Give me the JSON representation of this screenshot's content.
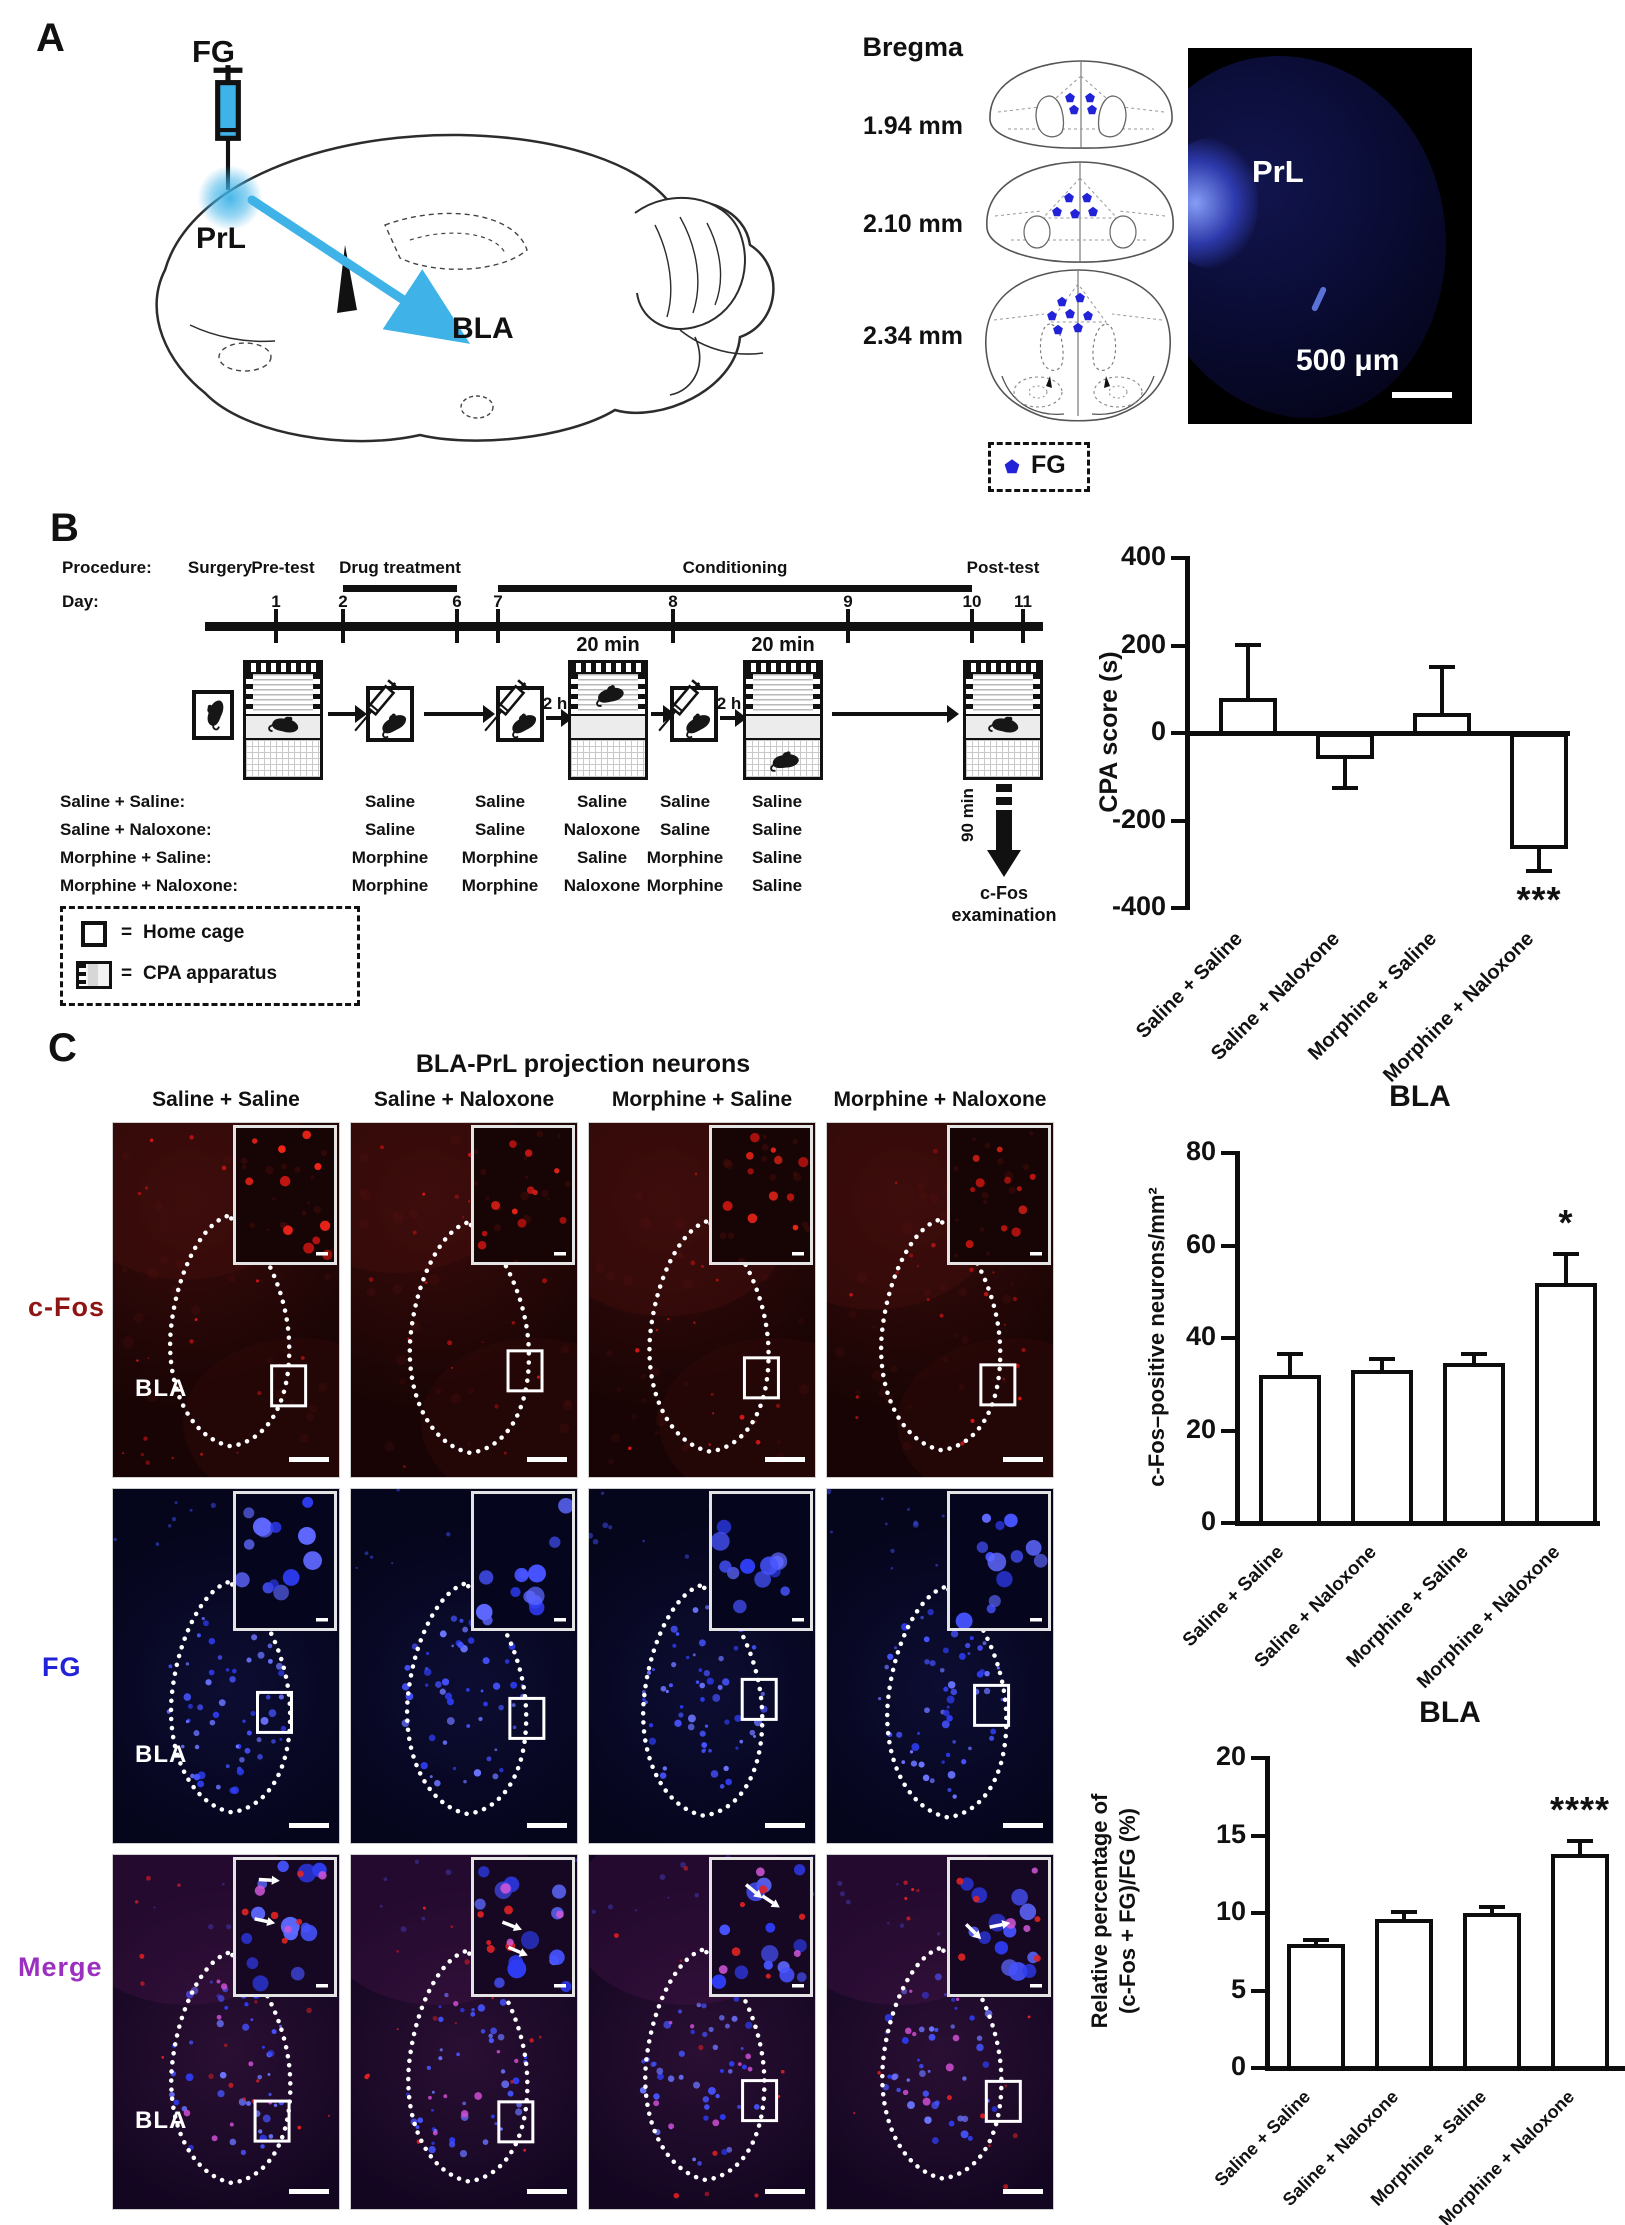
{
  "colors": {
    "accent_cyan": "#3FB3E8",
    "fg_dot_blue": "#2222D8",
    "cfos_label_red": "#8F1414",
    "fg_label_blue": "#2222D8",
    "merge_label_purple": "#9B2FC0"
  },
  "panelA": {
    "label": "A",
    "tracer_label": "FG",
    "injection_site_label": "PrL",
    "projection_target_label": "BLA",
    "bregma_title": "Bregma",
    "sections": [
      {
        "label": "1.94 mm"
      },
      {
        "label": "2.10 mm"
      },
      {
        "label": "2.34 mm"
      }
    ],
    "fg_legend_label": "FG",
    "micrograph": {
      "region_label": "PrL",
      "scale_bar_label": "500 μm"
    }
  },
  "panelB": {
    "label": "B",
    "procedure_caption": "Procedure:",
    "day_caption": "Day:",
    "procedures": [
      "Surgery",
      "Pre-test",
      "Drug treatment",
      "Conditioning",
      "Post-test"
    ],
    "days": [
      "1",
      "2",
      "6",
      "7",
      "8",
      "9",
      "10",
      "11"
    ],
    "session_durations": [
      "20 min",
      "20 min"
    ],
    "post_injection_waits": [
      "2 h",
      "2 h"
    ],
    "groups": [
      {
        "label": "Saline + Saline:",
        "treatments": [
          "Saline",
          "Saline",
          "Saline",
          "Saline",
          "Saline"
        ]
      },
      {
        "label": "Saline + Naloxone:",
        "treatments": [
          "Saline",
          "Saline",
          "Naloxone",
          "Saline",
          "Saline"
        ]
      },
      {
        "label": "Morphine + Saline:",
        "treatments": [
          "Morphine",
          "Morphine",
          "Saline",
          "Morphine",
          "Saline"
        ]
      },
      {
        "label": "Morphine + Naloxone:",
        "treatments": [
          "Morphine",
          "Morphine",
          "Naloxone",
          "Morphine",
          "Saline"
        ]
      }
    ],
    "legend": [
      {
        "icon": "home-cage-icon",
        "label": "Home cage",
        "equals": "="
      },
      {
        "icon": "cpa-apparatus-icon",
        "label": "CPA apparatus",
        "equals": "="
      }
    ],
    "cfos_delay_label": "90 min",
    "cfos_exam_label": "c-Fos examination"
  },
  "panelC": {
    "label": "C",
    "title": "BLA-PrL projection neurons",
    "column_headers": [
      "Saline + Saline",
      "Saline + Naloxone",
      "Morphine + Saline",
      "Morphine + Naloxone"
    ],
    "row_labels": [
      {
        "text": "c-Fos"
      },
      {
        "text": "FG"
      },
      {
        "text": "Merge"
      }
    ],
    "region_label": "BLA"
  },
  "chart_data": [
    {
      "id": "cpa",
      "type": "bar",
      "title": "",
      "ylabel": "CPA score (s)",
      "categories": [
        "Saline + Saline",
        "Saline + Naloxone",
        "Morphine + Saline",
        "Morphine + Naloxone"
      ],
      "values": [
        80,
        -55,
        45,
        -260
      ],
      "errors": [
        125,
        75,
        110,
        60
      ],
      "ylim": [
        -400,
        400
      ],
      "yticks": [
        400,
        200,
        0,
        -200,
        -400
      ],
      "grid": false,
      "legend_shown": false,
      "significance": {
        "category_index": 3,
        "text": "***",
        "placement": "below"
      }
    },
    {
      "id": "cfos_density",
      "type": "bar",
      "title": "BLA",
      "ylabel": "c-Fos–positive neurons/mm²",
      "categories": [
        "Saline + Saline",
        "Saline + Naloxone",
        "Morphine + Saline",
        "Morphine + Naloxone"
      ],
      "values": [
        32,
        33,
        34.5,
        52
      ],
      "errors": [
        5,
        3,
        2.5,
        6.5
      ],
      "ylim": [
        0,
        80
      ],
      "yticks": [
        0,
        20,
        40,
        60,
        80
      ],
      "grid": false,
      "legend_shown": false,
      "significance": {
        "category_index": 3,
        "text": "*",
        "placement": "above"
      }
    },
    {
      "id": "fg_overlap",
      "type": "bar",
      "title": "BLA",
      "ylabel": "Relative percentage of\n(c-Fos + FG)/FG (%)",
      "categories": [
        "Saline + Saline",
        "Saline + Naloxone",
        "Morphine + Saline",
        "Morphine + Naloxone"
      ],
      "values": [
        8,
        9.6,
        10,
        13.8
      ],
      "errors": [
        0.4,
        0.6,
        0.5,
        1
      ],
      "ylim": [
        0,
        20
      ],
      "yticks": [
        0,
        5,
        10,
        15,
        20
      ],
      "grid": false,
      "legend_shown": false,
      "significance": {
        "category_index": 3,
        "text": "****",
        "placement": "above"
      }
    }
  ]
}
